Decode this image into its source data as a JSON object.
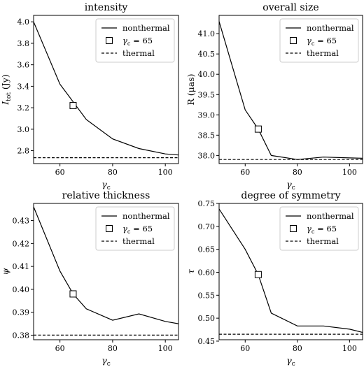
{
  "chart_data": [
    {
      "type": "line",
      "title": "intensity",
      "xlabel": "γ_c",
      "ylabel": "I_tot (Jy)",
      "xlim": [
        50,
        105
      ],
      "ylim": [
        2.68,
        4.06
      ],
      "xticks": [
        60,
        80,
        100
      ],
      "yticks": [
        2.8,
        3.0,
        3.2,
        3.4,
        3.6,
        3.8,
        4.0
      ],
      "ytick_labels": [
        "2.8",
        "3.0",
        "3.2",
        "3.4",
        "3.6",
        "3.8",
        "4.0"
      ],
      "legend": {
        "position": "top-right",
        "entries": [
          "nonthermal",
          "γ_c = 65",
          "thermal"
        ]
      },
      "series": [
        {
          "name": "nonthermal",
          "style": "solid",
          "x": [
            50,
            60,
            70,
            80,
            90,
            100,
            105
          ],
          "y": [
            4.0,
            3.42,
            3.09,
            2.91,
            2.82,
            2.77,
            2.76
          ]
        },
        {
          "name": "γ_c = 65",
          "style": "marker",
          "x": [
            65
          ],
          "y": [
            3.22
          ]
        },
        {
          "name": "thermal",
          "style": "dashed",
          "x": [
            50,
            105
          ],
          "y": [
            2.735,
            2.735
          ]
        }
      ]
    },
    {
      "type": "line",
      "title": "overall size",
      "xlabel": "γ_c",
      "ylabel": "R (μas)",
      "xlim": [
        50,
        105
      ],
      "ylim": [
        37.8,
        41.45
      ],
      "xticks": [
        60,
        80,
        100
      ],
      "yticks": [
        38.0,
        38.5,
        39.0,
        39.5,
        40.0,
        40.5,
        41.0
      ],
      "ytick_labels": [
        "38.0",
        "38.5",
        "39.0",
        "39.5",
        "40.0",
        "40.5",
        "41.0"
      ],
      "legend": {
        "position": "top-right",
        "entries": [
          "nonthermal",
          "γ_c = 65",
          "thermal"
        ]
      },
      "series": [
        {
          "name": "nonthermal",
          "style": "solid",
          "x": [
            50,
            60,
            65,
            70,
            80,
            90,
            100,
            105
          ],
          "y": [
            41.3,
            39.12,
            38.65,
            38.0,
            37.9,
            37.96,
            37.94,
            37.93
          ]
        },
        {
          "name": "γ_c = 65",
          "style": "marker",
          "x": [
            65
          ],
          "y": [
            38.65
          ]
        },
        {
          "name": "thermal",
          "style": "dashed",
          "x": [
            50,
            105
          ],
          "y": [
            37.9,
            37.9
          ]
        }
      ]
    },
    {
      "type": "line",
      "title": "relative thickness",
      "xlabel": "γ_c",
      "ylabel": "ψ",
      "xlim": [
        50,
        105
      ],
      "ylim": [
        0.378,
        0.4375
      ],
      "xticks": [
        60,
        80,
        100
      ],
      "yticks": [
        0.38,
        0.39,
        0.4,
        0.41,
        0.42,
        0.43
      ],
      "ytick_labels": [
        "0.38",
        "0.39",
        "0.40",
        "0.41",
        "0.42",
        "0.43"
      ],
      "legend": {
        "position": "top-right",
        "entries": [
          "nonthermal",
          "γ_c = 65",
          "thermal"
        ]
      },
      "series": [
        {
          "name": "nonthermal",
          "style": "solid",
          "x": [
            50,
            60,
            65,
            70,
            80,
            90,
            100,
            105
          ],
          "y": [
            0.436,
            0.408,
            0.398,
            0.3915,
            0.3865,
            0.3893,
            0.386,
            0.385
          ]
        },
        {
          "name": "γ_c = 65",
          "style": "marker",
          "x": [
            65
          ],
          "y": [
            0.398
          ]
        },
        {
          "name": "thermal",
          "style": "dashed",
          "x": [
            50,
            105
          ],
          "y": [
            0.38,
            0.38
          ]
        }
      ]
    },
    {
      "type": "line",
      "title": "degree of symmetry",
      "xlabel": "γ_c",
      "ylabel": "τ",
      "xlim": [
        50,
        105
      ],
      "ylim": [
        0.453,
        0.75
      ],
      "xticks": [
        60,
        80,
        100
      ],
      "yticks": [
        0.45,
        0.5,
        0.55,
        0.6,
        0.65,
        0.7,
        0.75
      ],
      "ytick_labels": [
        "0.45",
        "0.50",
        "0.55",
        "0.60",
        "0.65",
        "0.70",
        "0.75"
      ],
      "legend": {
        "position": "top-right",
        "entries": [
          "nonthermal",
          "γ_c = 65",
          "thermal"
        ]
      },
      "series": [
        {
          "name": "nonthermal",
          "style": "solid",
          "x": [
            50,
            60,
            65,
            70,
            80,
            90,
            100,
            105
          ],
          "y": [
            0.738,
            0.65,
            0.595,
            0.511,
            0.483,
            0.483,
            0.476,
            0.469
          ]
        },
        {
          "name": "γ_c = 65",
          "style": "marker",
          "x": [
            65
          ],
          "y": [
            0.595
          ]
        },
        {
          "name": "thermal",
          "style": "dashed",
          "x": [
            50,
            105
          ],
          "y": [
            0.465,
            0.465
          ]
        }
      ]
    }
  ]
}
